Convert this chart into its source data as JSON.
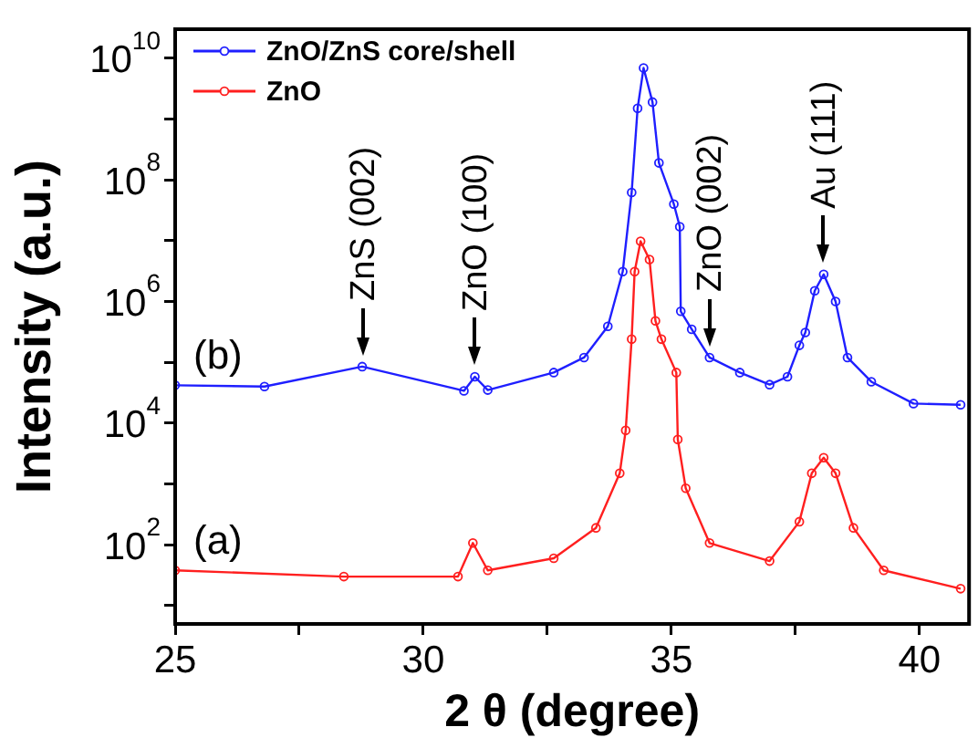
{
  "chart_data": {
    "type": "line",
    "xlabel": "2 θ (degree)",
    "ylabel": "Intensity (a.u.)",
    "log": "y",
    "grid": false,
    "legend": "top left",
    "marker": "circle",
    "line_style": "solid",
    "xlim": [
      25,
      41
    ],
    "xticks": [
      25,
      {
        "value": 27.5,
        "label": null
      },
      30,
      {
        "value": 32.5,
        "label": null
      },
      35,
      {
        "value": 37.5,
        "label": null
      },
      40
    ],
    "ylim": [
      5,
      30000000000
    ],
    "yticks": [
      {
        "value": 10,
        "label": null
      },
      {
        "value": 100,
        "label": "10$^{2}$"
      },
      {
        "value": 1000,
        "label": null
      },
      {
        "value": 10000,
        "label": "10$^{4}$"
      },
      {
        "value": 100000,
        "label": null
      },
      {
        "value": 1000000,
        "label": "10$^{6}$"
      },
      {
        "value": 10000000,
        "label": null
      },
      {
        "value": 100000000,
        "label": "10$^{8}$"
      },
      {
        "value": 1000000000,
        "label": null
      },
      {
        "value": 10000000000,
        "label": "10$^{10}$"
      }
    ],
    "series": [
      {
        "name": "ZnO/ZnS core/shell",
        "color": "#1f1fff",
        "x": [
          25,
          26.8,
          28.77,
          30.82,
          31.04,
          31.3,
          32.63,
          33.24,
          33.72,
          34.02,
          34.2,
          34.32,
          34.44,
          34.62,
          34.75,
          35.05,
          35.17,
          35.19,
          35.41,
          35.77,
          36.38,
          36.98,
          37.34,
          37.58,
          37.7,
          37.89,
          38.07,
          38.31,
          38.55,
          39.03,
          39.88,
          40.83
        ],
        "values": [
          42000,
          40000,
          85000,
          34000,
          58000,
          35000,
          68000,
          120000,
          390000,
          3100000,
          62000000,
          1500000000,
          6900000000,
          1900000000,
          190000000,
          40000000,
          17000000,
          690000,
          350000,
          120000,
          68000,
          43000,
          58000,
          190000,
          310000,
          1500000,
          2800000,
          1000000,
          120000,
          48000,
          21000,
          20000
        ]
      },
      {
        "name": "ZnO",
        "color": "#ff1f1f",
        "x": [
          25,
          28.4,
          30.7,
          31.0,
          31.3,
          32.63,
          33.48,
          33.96,
          34.08,
          34.2,
          34.26,
          34.38,
          34.56,
          34.68,
          34.8,
          35.1,
          35.13,
          35.29,
          35.77,
          36.98,
          37.58,
          37.83,
          38.07,
          38.31,
          38.67,
          39.28,
          40.83
        ],
        "values": [
          38,
          30,
          30,
          107,
          38,
          60,
          190,
          1500,
          7600,
          240000,
          3100000,
          9800000,
          4900000,
          480000,
          240000,
          68000,
          5400,
          850,
          107,
          54,
          240,
          1500,
          2700,
          1500,
          190,
          38,
          19
        ]
      }
    ],
    "annotations": [
      "(b)",
      "(a)",
      {
        "text": "ZnS (002)",
        "x": 28.77,
        "y": 85000
      },
      {
        "text": "ZnO (100)",
        "x": 31.04,
        "y": 58000
      },
      {
        "text": "ZnO (002)",
        "x": 35.77,
        "y": 120000
      },
      {
        "text": "Au (111)",
        "x": 38.07,
        "y": 2800000
      }
    ]
  }
}
